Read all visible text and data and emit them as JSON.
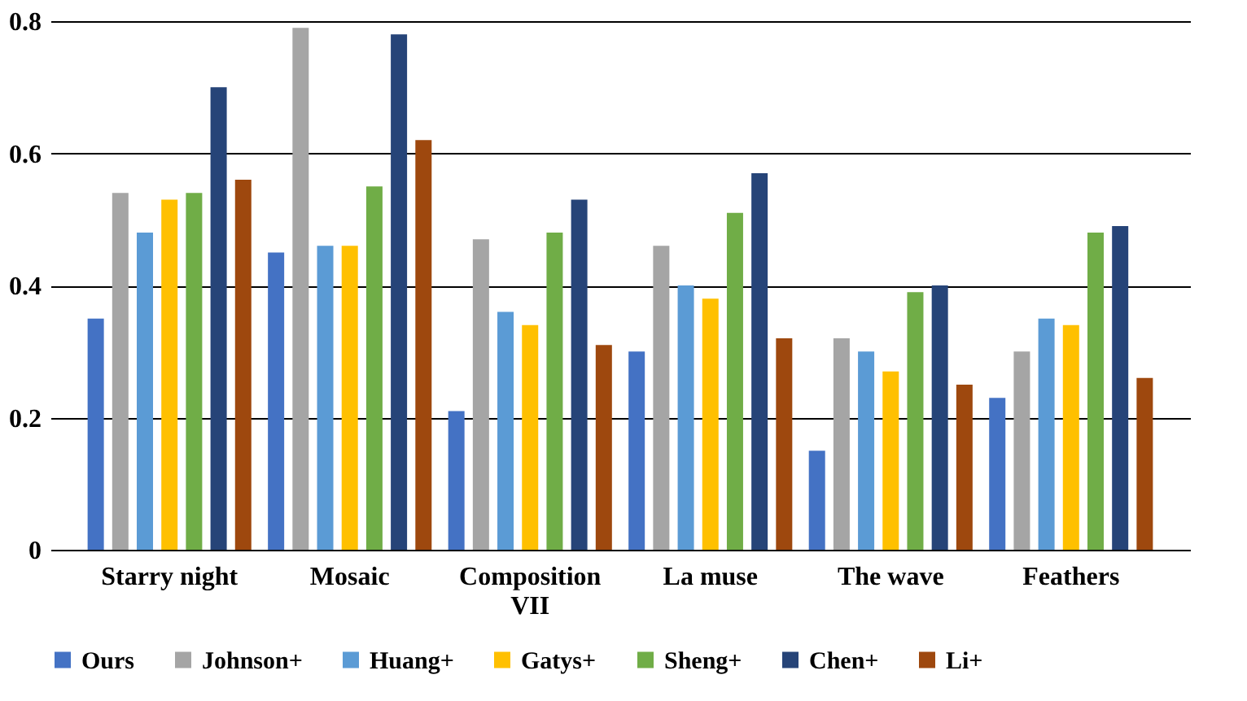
{
  "chart_data": {
    "type": "bar",
    "categories": [
      "Starry night",
      "Mosaic",
      "Composition VII",
      "La muse",
      "The wave",
      "Feathers"
    ],
    "series": [
      {
        "name": "Ours",
        "color": "#4472c4",
        "values": [
          0.35,
          0.45,
          0.21,
          0.3,
          0.15,
          0.23
        ]
      },
      {
        "name": "Johnson+",
        "color": "#a5a5a5",
        "values": [
          0.54,
          0.79,
          0.47,
          0.46,
          0.32,
          0.3
        ]
      },
      {
        "name": "Huang+",
        "color": "#5b9bd5",
        "values": [
          0.48,
          0.46,
          0.36,
          0.4,
          0.3,
          0.35
        ]
      },
      {
        "name": "Gatys+",
        "color": "#ffc000",
        "values": [
          0.53,
          0.46,
          0.34,
          0.38,
          0.27,
          0.34
        ]
      },
      {
        "name": "Sheng+",
        "color": "#70ad47",
        "values": [
          0.54,
          0.55,
          0.48,
          0.51,
          0.39,
          0.48
        ]
      },
      {
        "name": "Chen+",
        "color": "#264478",
        "values": [
          0.7,
          0.78,
          0.53,
          0.57,
          0.4,
          0.49
        ]
      },
      {
        "name": "Li+",
        "color": "#9e480e",
        "values": [
          0.56,
          0.62,
          0.31,
          0.32,
          0.25,
          0.26
        ]
      }
    ],
    "ylim": [
      0,
      0.8
    ],
    "yticks": [
      0,
      {
        "value": 0.2,
        "label": "0.2"
      },
      {
        "value": 0.4,
        "label": "0.4"
      },
      {
        "value": 0.6,
        "label": "0.6"
      },
      {
        "value": 0.8,
        "label": "0.8"
      }
    ],
    "grid": "y",
    "legend": "bottom"
  }
}
